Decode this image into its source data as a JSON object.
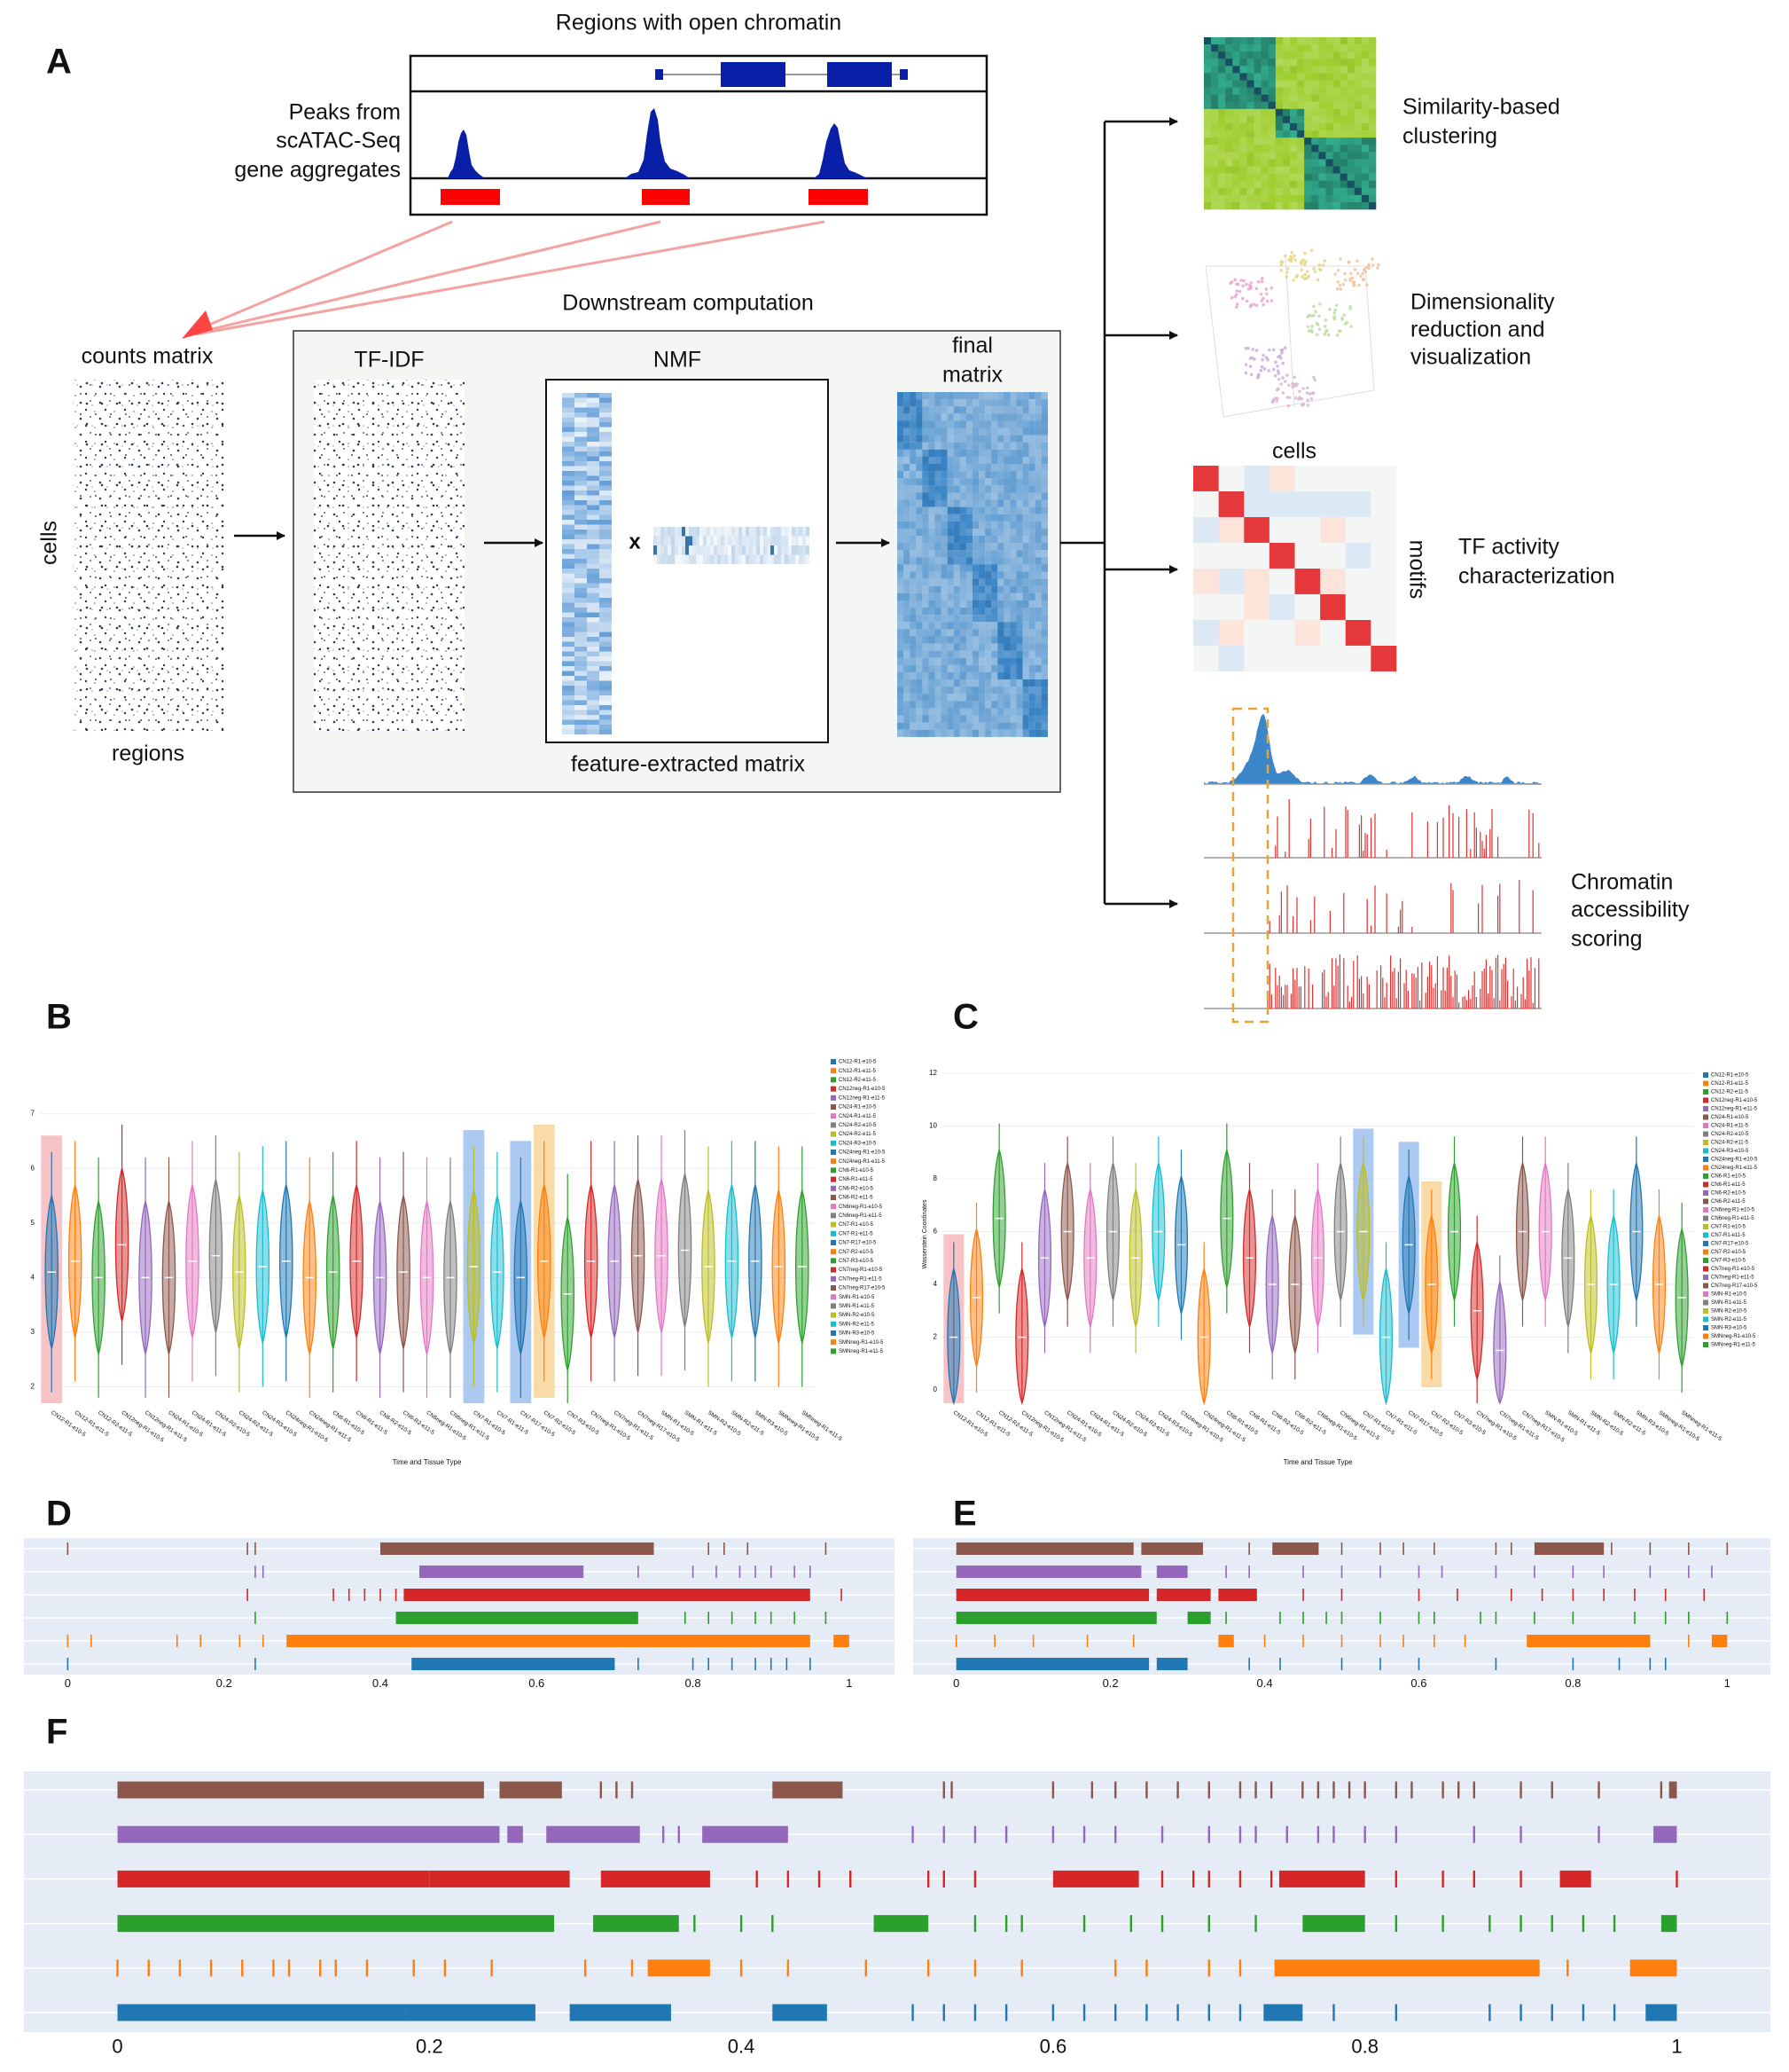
{
  "diagram": {
    "label": "A",
    "title": "Regions with open chromatin",
    "peaks_label": [
      "Peaks from",
      "scATAC-Seq",
      "gene aggregates"
    ],
    "counts_label": "counts matrix",
    "cells_label": "cells",
    "regions_label": "regions",
    "downstream": "Downstream computation",
    "tfidf": "TF-IDF",
    "nmf": "NMF",
    "times": "x",
    "feature": "feature-extracted matrix",
    "final": [
      "final",
      "matrix"
    ],
    "outputs": [
      {
        "lines": [
          "Similarity-based",
          "clustering"
        ]
      },
      {
        "lines": [
          "Dimensionality",
          "reduction and",
          "visualization"
        ]
      },
      {
        "lines": [
          "TF activity",
          "characterization"
        ]
      },
      {
        "lines": [
          "Chromatin",
          "accessibility",
          "scoring"
        ]
      }
    ],
    "motif_cells": "cells",
    "motif_motifs": "motifs"
  },
  "chart_data": [
    {
      "label": "B",
      "type": "violin",
      "categories": [
        "CN12-R1-e10-5",
        "CN12-R1-e11-5",
        "CN12-R2-e11-5",
        "CN12neg-R1-e10-5",
        "CN12neg-R1-e11-5",
        "CN24-R1-e10-5",
        "CN24-R1-e11-5",
        "CN24-R2-e10-5",
        "CN24-R2-e11-5",
        "CN24-R3-e10-5",
        "CN24neg-R1-e10-5",
        "CN24neg-R1-e11-5",
        "CN6-R1-e10-5",
        "CN6-R1-e11-5",
        "CN6-R2-e10-5",
        "CN6-R2-e11-5",
        "CN6neg-R1-e10-5",
        "CN6neg-R1-e11-5",
        "CN7-R1-e10-5",
        "CN7-R1-e11-5",
        "CN7-R17-e10-5",
        "CN7-R2-e10-5",
        "CN7-R3-e10-5",
        "CN7neg-R1-e10-5",
        "CN7neg-R1-e11-5",
        "CN7neg-R17-e10-5",
        "SMN-R1-e10-5",
        "SMN-R1-e11-5",
        "SMN-R2-e10-5",
        "SMN-R2-e11-5",
        "SMN-R3-e10-5",
        "SMNneg-R1-e10-5",
        "SMNneg-R1-e11-5"
      ],
      "values": [
        4.1,
        4.3,
        4.0,
        4.6,
        4.0,
        4.0,
        4.3,
        4.4,
        4.1,
        4.2,
        4.3,
        4.0,
        4.1,
        4.3,
        4.0,
        4.1,
        4.0,
        4.0,
        4.2,
        4.1,
        4.0,
        4.3,
        3.7,
        4.3,
        4.3,
        4.4,
        4.4,
        4.5,
        4.2,
        4.3,
        4.3,
        4.2,
        4.2
      ],
      "ylim": [
        1.7,
        8
      ],
      "yticks": [
        2,
        3,
        4,
        5,
        6,
        7
      ],
      "grid": true,
      "xlabel": "Time and Tissue Type",
      "colors": [
        "#1f77b4",
        "#ff7f0e",
        "#2ca02c",
        "#d62728",
        "#9467bd",
        "#8c564b",
        "#e377c2",
        "#7f7f7f",
        "#bcbd22",
        "#17becf"
      ]
    },
    {
      "label": "C",
      "type": "violin",
      "categories": [
        "CN12-R1-e10-5",
        "CN12-R1-e11-5",
        "CN12-R2-e11-5",
        "CN12neg-R1-e10-5",
        "CN12neg-R1-e11-5",
        "CN24-R1-e10-5",
        "CN24-R1-e11-5",
        "CN24-R2-e10-5",
        "CN24-R2-e11-5",
        "CN24-R3-e10-5",
        "CN24neg-R1-e10-5",
        "CN24neg-R1-e11-5",
        "CN6-R1-e10-5",
        "CN6-R1-e11-5",
        "CN6-R2-e10-5",
        "CN6-R2-e11-5",
        "CN6neg-R1-e10-5",
        "CN6neg-R1-e11-5",
        "CN7-R1-e10-5",
        "CN7-R1-e11-5",
        "CN7-R17-e10-5",
        "CN7-R2-e10-5",
        "CN7-R3-e10-5",
        "CN7neg-R1-e10-5",
        "CN7neg-R1-e11-5",
        "CN7neg-R17-e10-5",
        "SMN-R1-e10-5",
        "SMN-R1-e11-5",
        "SMN-R2-e10-5",
        "SMN-R2-e11-5",
        "SMN-R3-e10-5",
        "SMNneg-R1-e10-5",
        "SMNneg-R1-e11-5"
      ],
      "values": [
        2,
        3.5,
        6.5,
        2,
        5,
        6,
        5,
        6,
        5,
        6,
        5.5,
        2,
        6.5,
        5,
        4,
        4,
        5,
        6,
        6,
        2,
        5.5,
        4,
        6,
        3,
        1.5,
        6,
        6,
        5,
        4,
        4,
        6,
        4,
        3.5
      ],
      "ylim": [
        -0.5,
        12.3
      ],
      "yticks": [
        0,
        2,
        4,
        6,
        8,
        10,
        12
      ],
      "grid": true,
      "xlabel": "Time and Tissue Type",
      "ylabel": "Wasserstein Coordinates",
      "colors": [
        "#1f77b4",
        "#ff7f0e",
        "#2ca02c",
        "#d62728",
        "#9467bd",
        "#8c564b",
        "#e377c2",
        "#7f7f7f",
        "#bcbd22",
        "#17becf"
      ]
    },
    {
      "label": "D",
      "type": "eventplot",
      "xlim": [
        -0.056,
        1.058
      ],
      "xticks": [
        0,
        0.2,
        0.4,
        0.6,
        0.8,
        1
      ],
      "series": [
        {
          "color": "#8c564b",
          "spans": [
            [
              0.4,
              0.75
            ]
          ],
          "ticks": [
            0,
            0.23,
            0.24,
            0.82,
            0.84,
            0.87,
            0.97
          ]
        },
        {
          "color": "#9467bd",
          "spans": [
            [
              0.45,
              0.66
            ]
          ],
          "ticks": [
            0.24,
            0.25,
            0.73,
            0.8,
            0.83,
            0.86,
            0.88,
            0.9,
            0.93,
            0.95
          ]
        },
        {
          "color": "#d62728",
          "spans": [
            [
              0.43,
              0.95
            ]
          ],
          "ticks": [
            0.23,
            0.34,
            0.36,
            0.38,
            0.4,
            0.42,
            0.99
          ]
        },
        {
          "color": "#2ca02c",
          "spans": [
            [
              0.42,
              0.73
            ]
          ],
          "ticks": [
            0.24,
            0.79,
            0.82,
            0.85,
            0.88,
            0.9,
            0.93,
            0.97
          ]
        },
        {
          "color": "#ff7f0e",
          "spans": [
            [
              0.28,
              0.95
            ],
            [
              0.98,
              1
            ]
          ],
          "ticks": [
            0,
            0.03,
            0.14,
            0.17,
            0.22,
            0.25
          ]
        },
        {
          "color": "#1f77b4",
          "spans": [
            [
              0.44,
              0.7
            ]
          ],
          "ticks": [
            0,
            0.24,
            0.73,
            0.8,
            0.82,
            0.85,
            0.88,
            0.9,
            0.92,
            0.95
          ]
        }
      ]
    },
    {
      "label": "E",
      "type": "eventplot",
      "xlim": [
        -0.056,
        1.056
      ],
      "xticks": [
        0,
        0.2,
        0.4,
        0.6,
        0.8,
        1
      ],
      "series": [
        {
          "color": "#8c564b",
          "spans": [
            [
              0,
              0.23
            ],
            [
              0.24,
              0.32
            ],
            [
              0.41,
              0.47
            ],
            [
              0.75,
              0.84
            ]
          ],
          "ticks": [
            0.38,
            0.5,
            0.55,
            0.58,
            0.62,
            0.7,
            0.72,
            0.85,
            0.9,
            0.95,
            1
          ]
        },
        {
          "color": "#9467bd",
          "spans": [
            [
              0,
              0.24
            ],
            [
              0.26,
              0.3
            ]
          ],
          "ticks": [
            0.35,
            0.38,
            0.45,
            0.5,
            0.55,
            0.6,
            0.63,
            0.7,
            0.75,
            0.8,
            0.84,
            0.9,
            0.95,
            0.98
          ]
        },
        {
          "color": "#d62728",
          "spans": [
            [
              0,
              0.25
            ],
            [
              0.26,
              0.33
            ],
            [
              0.34,
              0.39
            ]
          ],
          "ticks": [
            0.45,
            0.5,
            0.6,
            0.65,
            0.72,
            0.76,
            0.8,
            0.84,
            0.88,
            0.92,
            0.97
          ]
        },
        {
          "color": "#2ca02c",
          "spans": [
            [
              0,
              0.26
            ],
            [
              0.3,
              0.33
            ]
          ],
          "ticks": [
            0.35,
            0.42,
            0.45,
            0.48,
            0.5,
            0.55,
            0.6,
            0.62,
            0.68,
            0.7,
            0.75,
            0.8,
            0.88,
            0.92,
            0.95,
            1
          ]
        },
        {
          "color": "#ff7f0e",
          "spans": [
            [
              0.34,
              0.36
            ],
            [
              0.74,
              0.9
            ],
            [
              0.98,
              1
            ]
          ],
          "ticks": [
            0,
            0.05,
            0.1,
            0.17,
            0.23,
            0.4,
            0.45,
            0.5,
            0.55,
            0.58,
            0.62,
            0.66,
            0.95
          ]
        },
        {
          "color": "#1f77b4",
          "spans": [
            [
              0,
              0.25
            ],
            [
              0.26,
              0.3
            ]
          ],
          "ticks": [
            0.38,
            0.42,
            0.5,
            0.55,
            0.6,
            0.7,
            0.8,
            0.86,
            0.9,
            0.92
          ]
        }
      ]
    },
    {
      "label": "F",
      "type": "eventplot",
      "xlim": [
        -0.06,
        1.06
      ],
      "xticks": [
        0,
        0.2,
        0.4,
        0.6,
        0.8,
        1
      ],
      "series": [
        {
          "color": "#8c564b",
          "spans": [
            [
              0,
              0.235
            ],
            [
              0.245,
              0.285
            ],
            [
              0.42,
              0.465
            ],
            [
              0.995,
              1
            ]
          ],
          "ticks": [
            0.31,
            0.32,
            0.33,
            0.53,
            0.535,
            0.6,
            0.625,
            0.64,
            0.66,
            0.68,
            0.7,
            0.72,
            0.73,
            0.74,
            0.76,
            0.77,
            0.78,
            0.79,
            0.8,
            0.82,
            0.83,
            0.85,
            0.86,
            0.87,
            0.9,
            0.92,
            0.95,
            0.99
          ]
        },
        {
          "color": "#9467bd",
          "spans": [
            [
              0,
              0.245
            ],
            [
              0.25,
              0.26
            ],
            [
              0.275,
              0.335
            ],
            [
              0.375,
              0.43
            ],
            [
              0.985,
              1
            ]
          ],
          "ticks": [
            0.35,
            0.36,
            0.51,
            0.53,
            0.55,
            0.57,
            0.6,
            0.62,
            0.64,
            0.67,
            0.7,
            0.72,
            0.73,
            0.75,
            0.77,
            0.78,
            0.8,
            0.82,
            0.87,
            0.9,
            0.95
          ]
        },
        {
          "color": "#d62728",
          "spans": [
            [
              0,
              0.2
            ],
            [
              0.2,
              0.29
            ],
            [
              0.31,
              0.38
            ],
            [
              0.6,
              0.655
            ],
            [
              0.745,
              0.8
            ],
            [
              0.925,
              0.945
            ]
          ],
          "ticks": [
            0.41,
            0.43,
            0.45,
            0.47,
            0.52,
            0.53,
            0.55,
            0.67,
            0.69,
            0.7,
            0.72,
            0.74,
            0.82,
            0.85,
            0.87,
            0.9,
            1
          ]
        },
        {
          "color": "#2ca02c",
          "spans": [
            [
              0,
              0.28
            ],
            [
              0.305,
              0.36
            ],
            [
              0.485,
              0.52
            ],
            [
              0.76,
              0.8
            ],
            [
              0.99,
              1
            ]
          ],
          "ticks": [
            0.37,
            0.4,
            0.42,
            0.55,
            0.57,
            0.58,
            0.62,
            0.65,
            0.67,
            0.7,
            0.73,
            0.82,
            0.85,
            0.88,
            0.9,
            0.92,
            0.94,
            0.96
          ]
        },
        {
          "color": "#ff7f0e",
          "spans": [
            [
              0.34,
              0.38
            ],
            [
              0.742,
              0.912
            ],
            [
              0.97,
              1
            ]
          ],
          "ticks": [
            0,
            0.02,
            0.04,
            0.06,
            0.08,
            0.1,
            0.11,
            0.13,
            0.14,
            0.16,
            0.19,
            0.21,
            0.24,
            0.3,
            0.33,
            0.4,
            0.43,
            0.48,
            0.52,
            0.55,
            0.58,
            0.64,
            0.66,
            0.7,
            0.72,
            0.93
          ]
        },
        {
          "color": "#1f77b4",
          "spans": [
            [
              0,
              0.185
            ],
            [
              0.185,
              0.268
            ],
            [
              0.29,
              0.355
            ],
            [
              0.42,
              0.455
            ],
            [
              0.735,
              0.76
            ],
            [
              0.98,
              1
            ]
          ],
          "ticks": [
            0.51,
            0.53,
            0.55,
            0.57,
            0.6,
            0.62,
            0.64,
            0.66,
            0.68,
            0.7,
            0.72,
            0.78,
            0.82,
            0.88,
            0.9,
            0.92,
            0.94,
            0.96
          ]
        }
      ]
    }
  ]
}
